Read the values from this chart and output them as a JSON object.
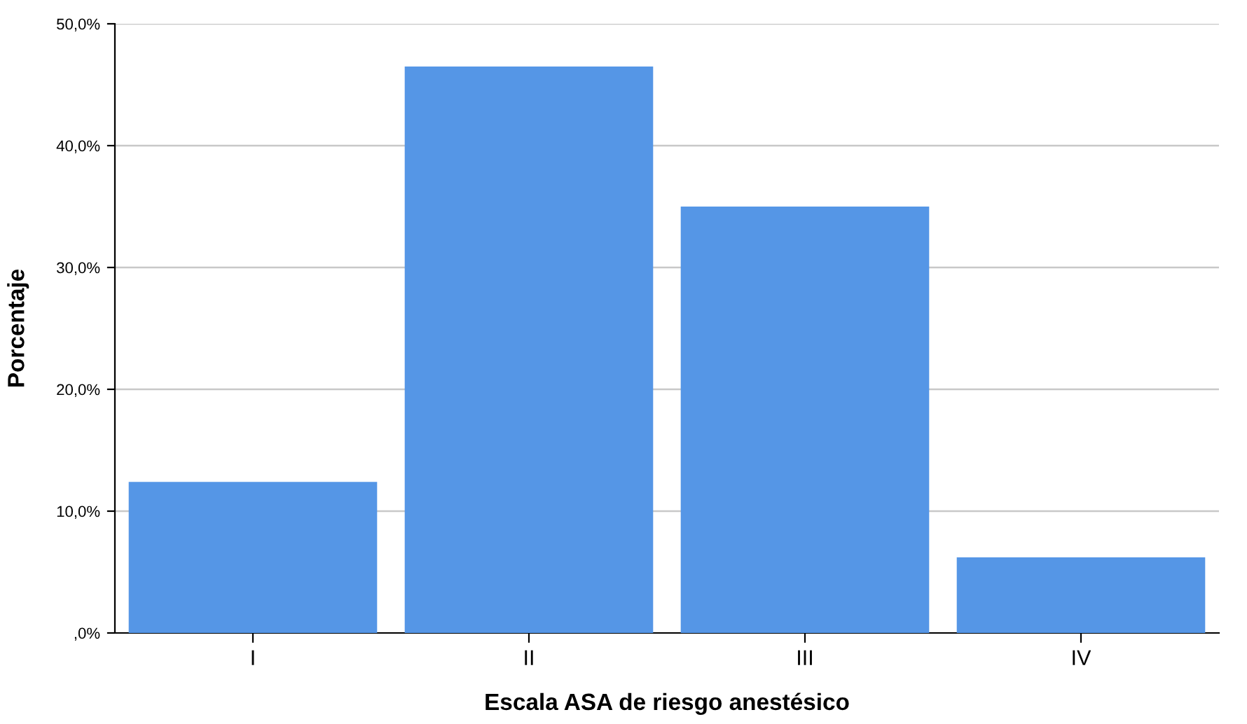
{
  "chart_data": {
    "type": "bar",
    "xlabel": "Escala ASA de riesgo anestésico",
    "ylabel": "Porcentaje",
    "categories": [
      "I",
      "II",
      "III",
      "IV"
    ],
    "values": [
      12.4,
      46.5,
      35.0,
      6.2
    ],
    "color": "#5596e6",
    "ylim": [
      0,
      50
    ],
    "yticks": [
      {
        "value": 0,
        "label": ",0%"
      },
      {
        "value": 10,
        "label": "10,0%"
      },
      {
        "value": 20,
        "label": "20,0%"
      },
      {
        "value": 30,
        "label": "30,0%"
      },
      {
        "value": 40,
        "label": "40,0%"
      },
      {
        "value": 50,
        "label": "50,0%"
      }
    ],
    "grid": "y"
  }
}
